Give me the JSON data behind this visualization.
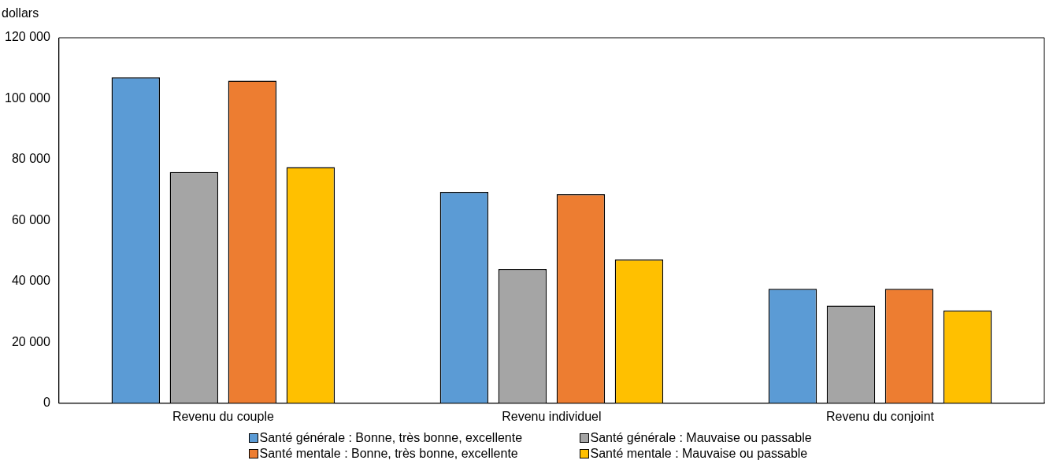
{
  "chart_data": {
    "type": "bar",
    "ylabel": "dollars",
    "categories": [
      "Revenu du couple",
      "Revenu individuel",
      "Revenu du conjoint"
    ],
    "series": [
      {
        "name": "Santé générale : Bonne, très bonne, excellente",
        "color": "#5b9bd5",
        "values": [
          107000,
          69400,
          37600
        ]
      },
      {
        "name": "Santé générale : Mauvaise ou passable",
        "color": "#a5a5a5",
        "values": [
          75900,
          44100,
          32100
        ]
      },
      {
        "name": "Santé mentale : Bonne, très bonne, excellente",
        "color": "#ed7d31",
        "values": [
          105900,
          68600,
          37600
        ]
      },
      {
        "name": "Santé mentale : Mauvaise ou passable",
        "color": "#ffc000",
        "values": [
          77500,
          47200,
          30500
        ]
      }
    ],
    "ylim": [
      0,
      120000
    ],
    "yticks": [
      0,
      {
        "value": 20000,
        "label": "20 000"
      },
      {
        "value": 40000,
        "label": "40 000"
      },
      {
        "value": 60000,
        "label": "60 000"
      },
      {
        "value": 80000,
        "label": "80 000"
      },
      {
        "value": 100000,
        "label": "100 000"
      },
      {
        "value": 120000,
        "label": "120 000"
      }
    ],
    "grid": false,
    "legend": "bottom"
  }
}
